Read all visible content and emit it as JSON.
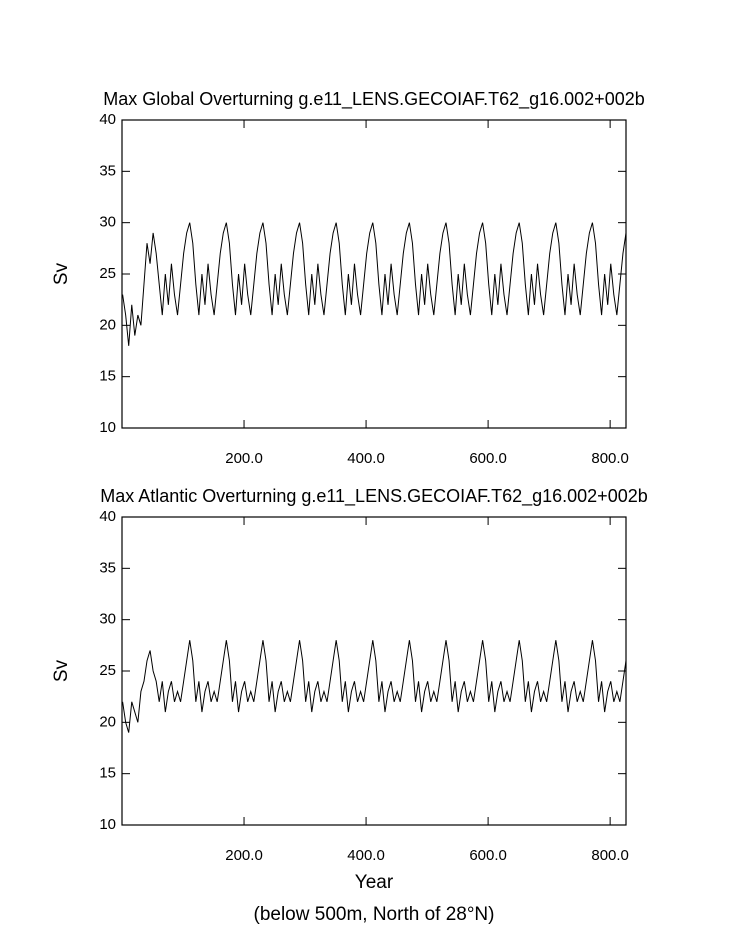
{
  "chart_data": [
    {
      "type": "line",
      "title": "Max Global Overturning g.e11_LENS.GECOIAF.T62_g16.002+002b",
      "ylabel": "Sv",
      "xlim": [
        0,
        826
      ],
      "ylim": [
        10,
        40
      ],
      "xticks": [
        {
          "value": 200,
          "label": "200.0"
        },
        {
          "value": 400,
          "label": "400.0"
        },
        {
          "value": 600,
          "label": "600.0"
        },
        {
          "value": 800,
          "label": "800.0"
        }
      ],
      "yticks": [
        10,
        15,
        20,
        25,
        30,
        35,
        40
      ],
      "x": [
        1,
        6,
        11,
        16,
        21,
        26,
        31,
        36,
        41,
        46,
        51,
        56,
        61,
        66,
        71,
        76,
        81,
        86,
        91,
        96,
        101,
        106,
        111,
        116,
        121,
        126,
        131,
        136,
        141,
        146,
        151,
        156,
        161,
        166,
        171,
        176,
        181,
        186,
        191,
        196,
        201,
        206,
        211,
        216,
        221,
        226,
        231,
        236,
        241,
        246,
        251,
        256,
        261,
        266,
        271,
        276,
        281,
        286,
        291,
        296,
        301,
        306,
        311,
        316,
        321,
        326,
        331,
        336,
        341,
        346,
        351,
        356,
        361,
        366,
        371,
        376,
        381,
        386,
        391,
        396,
        401,
        406,
        411,
        416,
        421,
        426,
        431,
        436,
        441,
        446,
        451,
        456,
        461,
        466,
        471,
        476,
        481,
        486,
        491,
        496,
        501,
        506,
        511,
        516,
        521,
        526,
        531,
        536,
        541,
        546,
        551,
        556,
        561,
        566,
        571,
        576,
        581,
        586,
        591,
        596,
        601,
        606,
        611,
        616,
        621,
        626,
        631,
        636,
        641,
        646,
        651,
        656,
        661,
        666,
        671,
        676,
        681,
        686,
        691,
        696,
        701,
        706,
        711,
        716,
        721,
        726,
        731,
        736,
        741,
        746,
        751,
        756,
        761,
        766,
        771,
        776,
        781,
        786,
        791,
        796,
        801,
        806,
        811,
        816,
        821,
        826
      ],
      "series": [
        {
          "color": "#000000",
          "values": [
            23,
            21,
            18,
            22,
            19,
            21,
            20,
            24,
            28,
            26,
            29,
            27,
            24,
            21,
            25,
            22,
            26,
            23,
            21,
            24,
            27,
            29,
            30,
            28,
            24,
            21,
            25,
            22,
            26,
            23,
            21,
            24,
            27,
            29,
            30,
            28,
            24,
            21,
            25,
            22,
            26,
            23,
            21,
            24,
            27,
            29,
            30,
            28,
            24,
            21,
            25,
            22,
            26,
            23,
            21,
            24,
            27,
            29,
            30,
            28,
            24,
            21,
            25,
            22,
            26,
            23,
            21,
            24,
            27,
            29,
            30,
            28,
            24,
            21,
            25,
            22,
            26,
            23,
            21,
            24,
            27,
            29,
            30,
            28,
            24,
            21,
            25,
            22,
            26,
            23,
            21,
            24,
            27,
            29,
            30,
            28,
            24,
            21,
            25,
            22,
            26,
            23,
            21,
            24,
            27,
            29,
            30,
            28,
            24,
            21,
            25,
            22,
            26,
            23,
            21,
            24,
            27,
            29,
            30,
            28,
            24,
            21,
            25,
            22,
            26,
            23,
            21,
            24,
            27,
            29,
            30,
            28,
            24,
            21,
            25,
            22,
            26,
            23,
            21,
            24,
            27,
            29,
            30,
            28,
            24,
            21,
            25,
            22,
            26,
            23,
            21,
            24,
            27,
            29,
            30,
            28,
            24,
            21,
            25,
            22,
            26,
            23,
            21,
            24,
            27,
            29
          ]
        }
      ]
    },
    {
      "type": "line",
      "title": "Max Atlantic Overturning g.e11_LENS.GECOIAF.T62_g16.002+002b",
      "ylabel": "Sv",
      "xlabel": "Year",
      "note": "(below 500m, North of 28°N)",
      "xlim": [
        0,
        826
      ],
      "ylim": [
        10,
        40
      ],
      "xticks": [
        {
          "value": 200,
          "label": "200.0"
        },
        {
          "value": 400,
          "label": "400.0"
        },
        {
          "value": 600,
          "label": "600.0"
        },
        {
          "value": 800,
          "label": "800.0"
        }
      ],
      "yticks": [
        10,
        15,
        20,
        25,
        30,
        35,
        40
      ],
      "x": [
        1,
        6,
        11,
        16,
        21,
        26,
        31,
        36,
        41,
        46,
        51,
        56,
        61,
        66,
        71,
        76,
        81,
        86,
        91,
        96,
        101,
        106,
        111,
        116,
        121,
        126,
        131,
        136,
        141,
        146,
        151,
        156,
        161,
        166,
        171,
        176,
        181,
        186,
        191,
        196,
        201,
        206,
        211,
        216,
        221,
        226,
        231,
        236,
        241,
        246,
        251,
        256,
        261,
        266,
        271,
        276,
        281,
        286,
        291,
        296,
        301,
        306,
        311,
        316,
        321,
        326,
        331,
        336,
        341,
        346,
        351,
        356,
        361,
        366,
        371,
        376,
        381,
        386,
        391,
        396,
        401,
        406,
        411,
        416,
        421,
        426,
        431,
        436,
        441,
        446,
        451,
        456,
        461,
        466,
        471,
        476,
        481,
        486,
        491,
        496,
        501,
        506,
        511,
        516,
        521,
        526,
        531,
        536,
        541,
        546,
        551,
        556,
        561,
        566,
        571,
        576,
        581,
        586,
        591,
        596,
        601,
        606,
        611,
        616,
        621,
        626,
        631,
        636,
        641,
        646,
        651,
        656,
        661,
        666,
        671,
        676,
        681,
        686,
        691,
        696,
        701,
        706,
        711,
        716,
        721,
        726,
        731,
        736,
        741,
        746,
        751,
        756,
        761,
        766,
        771,
        776,
        781,
        786,
        791,
        796,
        801,
        806,
        811,
        816,
        821,
        826
      ],
      "series": [
        {
          "color": "#000000",
          "values": [
            22,
            20,
            19,
            22,
            21,
            20,
            23,
            24,
            26,
            27,
            25,
            24,
            22,
            24,
            21,
            23,
            24,
            22,
            23,
            22,
            24,
            26,
            28,
            26,
            22,
            24,
            21,
            23,
            24,
            22,
            23,
            22,
            24,
            26,
            28,
            26,
            22,
            24,
            21,
            23,
            24,
            22,
            23,
            22,
            24,
            26,
            28,
            26,
            22,
            24,
            21,
            23,
            24,
            22,
            23,
            22,
            24,
            26,
            28,
            26,
            22,
            24,
            21,
            23,
            24,
            22,
            23,
            22,
            24,
            26,
            28,
            26,
            22,
            24,
            21,
            23,
            24,
            22,
            23,
            22,
            24,
            26,
            28,
            26,
            22,
            24,
            21,
            23,
            24,
            22,
            23,
            22,
            24,
            26,
            28,
            26,
            22,
            24,
            21,
            23,
            24,
            22,
            23,
            22,
            24,
            26,
            28,
            26,
            22,
            24,
            21,
            23,
            24,
            22,
            23,
            22,
            24,
            26,
            28,
            26,
            22,
            24,
            21,
            23,
            24,
            22,
            23,
            22,
            24,
            26,
            28,
            26,
            22,
            24,
            21,
            23,
            24,
            22,
            23,
            22,
            24,
            26,
            28,
            26,
            22,
            24,
            21,
            23,
            24,
            22,
            23,
            22,
            24,
            26,
            28,
            26,
            22,
            24,
            21,
            23,
            24,
            22,
            23,
            22,
            24,
            26
          ]
        }
      ]
    }
  ]
}
